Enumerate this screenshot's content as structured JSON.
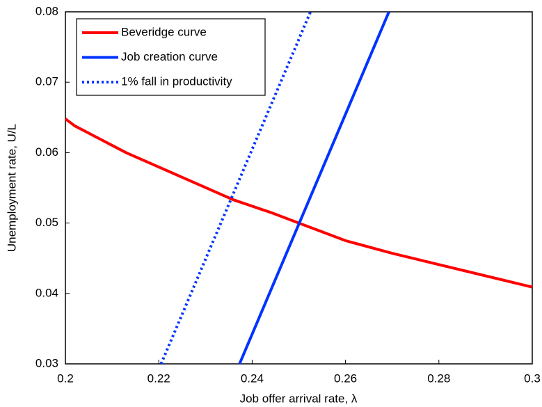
{
  "chart_data": {
    "type": "line",
    "xlabel": "Job offer arrival rate, λ",
    "ylabel": "Unemployment rate, U/L",
    "xlim": [
      0.2,
      0.3
    ],
    "xticks": [
      0.2,
      0.22,
      0.24,
      0.26,
      0.28,
      0.3
    ],
    "ylim": [
      0.03,
      0.08
    ],
    "yticks": [
      0.03,
      0.04,
      0.05,
      0.06,
      0.07,
      0.08
    ],
    "grid": false,
    "legend": "upper left",
    "series": [
      {
        "name": "Beveridge curve",
        "color": "#ff0000",
        "linestyle": "solid",
        "x": [
          0.2,
          0.202,
          0.213,
          0.225,
          0.236,
          0.244,
          0.25,
          0.26,
          0.27,
          0.28,
          0.29,
          0.3
        ],
        "values": [
          0.0648,
          0.0638,
          0.06,
          0.0565,
          0.0533,
          0.0515,
          0.05,
          0.0475,
          0.0457,
          0.0441,
          0.0425,
          0.0409
        ]
      },
      {
        "name": "Job creation curve",
        "color": "#0033ff",
        "linestyle": "solid",
        "x": [
          0.2373,
          0.2693
        ],
        "values": [
          0.03,
          0.08
        ]
      },
      {
        "name": "1% fall in productivity",
        "color": "#0033ff",
        "linestyle": "dotted",
        "x": [
          0.2205,
          0.2525
        ],
        "values": [
          0.03,
          0.08
        ]
      }
    ]
  }
}
